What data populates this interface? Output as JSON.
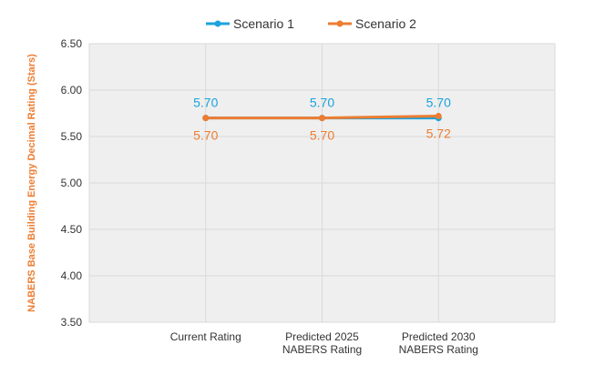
{
  "chart_data": {
    "type": "line",
    "title": "",
    "xlabel": "",
    "ylabel": "NABERS Base Building Energy Decimal Rating (Stars)",
    "ylim": [
      3.5,
      6.5
    ],
    "yticks": [
      "3.50",
      "4.00",
      "4.50",
      "5.00",
      "5.50",
      "6.00",
      "6.50"
    ],
    "grid": true,
    "legend_position": "top",
    "categories": [
      [
        "Current Rating"
      ],
      [
        "Predicted 2025",
        "NABERS Rating"
      ],
      [
        "Predicted 2030",
        "NABERS Rating"
      ]
    ],
    "series": [
      {
        "name": "Scenario 1",
        "color": "#1AA3DD",
        "values": [
          5.7,
          5.7,
          5.7
        ],
        "labels": [
          "5.70",
          "5.70",
          "5.70"
        ],
        "label_position": "above"
      },
      {
        "name": "Scenario 2",
        "color": "#ED7D31",
        "values": [
          5.7,
          5.7,
          5.72
        ],
        "labels": [
          "5.70",
          "5.70",
          "5.72"
        ],
        "label_position": "below"
      }
    ],
    "colors": {
      "plot_background": "#EFEFEF",
      "grid": "#D9D9D9",
      "ylabel": "#ED7D31"
    }
  }
}
